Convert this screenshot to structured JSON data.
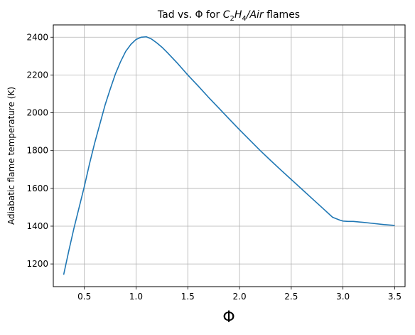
{
  "chart_data": {
    "type": "line",
    "title": {
      "prefix": "Tad vs. Φ for ",
      "c": "C",
      "c_sub": "2",
      "h": "H",
      "h_sub": "4",
      "slash_air": "/Air",
      "suffix": " flames"
    },
    "xlabel": "Φ",
    "ylabel": "Adiabatic flame temperature (K)",
    "xlim": [
      0.2,
      3.6
    ],
    "ylim": [
      1080,
      2465
    ],
    "xticks": [
      0.5,
      1.0,
      1.5,
      2.0,
      2.5,
      3.0,
      3.5
    ],
    "xtick_labels": [
      "0.5",
      "1.0",
      "1.5",
      "2.0",
      "2.5",
      "3.0",
      "3.5"
    ],
    "yticks": [
      1200,
      1400,
      1600,
      1800,
      2000,
      2200,
      2400
    ],
    "ytick_labels": [
      "1200",
      "1400",
      "1600",
      "1800",
      "2000",
      "2200",
      "2400"
    ],
    "grid": true,
    "line_color": "#1f77b4",
    "series": [
      {
        "x": [
          0.3,
          0.35,
          0.4,
          0.45,
          0.5,
          0.55,
          0.6,
          0.65,
          0.7,
          0.75,
          0.8,
          0.85,
          0.9,
          0.95,
          1.0,
          1.05,
          1.1,
          1.15,
          1.2,
          1.25,
          1.3,
          1.4,
          1.5,
          1.6,
          1.7,
          1.8,
          1.9,
          2.0,
          2.1,
          2.2,
          2.3,
          2.4,
          2.5,
          2.6,
          2.7,
          2.8,
          2.9,
          2.97,
          3.0,
          3.05,
          3.1,
          3.2,
          3.3,
          3.4,
          3.5
        ],
        "y": [
          1143,
          1270,
          1390,
          1500,
          1610,
          1730,
          1840,
          1940,
          2040,
          2125,
          2205,
          2270,
          2325,
          2362,
          2388,
          2400,
          2402,
          2390,
          2370,
          2347,
          2320,
          2262,
          2200,
          2142,
          2082,
          2025,
          1967,
          1910,
          1855,
          1800,
          1748,
          1697,
          1647,
          1597,
          1547,
          1497,
          1447,
          1432,
          1427,
          1425,
          1425,
          1420,
          1414,
          1408,
          1404
        ]
      }
    ]
  }
}
